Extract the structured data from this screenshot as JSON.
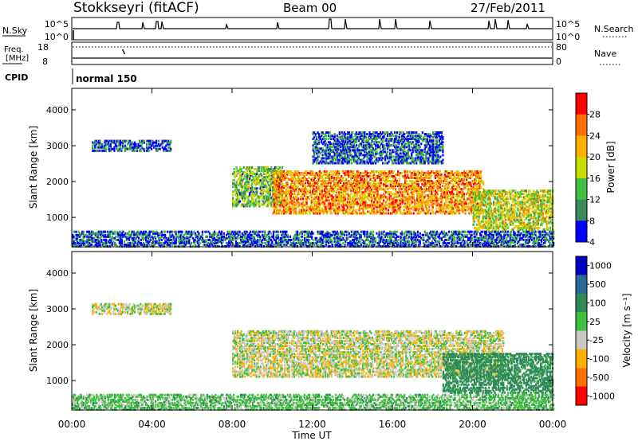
{
  "header": {
    "station": "Stokkseyri (fitACF)",
    "beam": "Beam 00",
    "date": "27/Feb/2011"
  },
  "top_panels": {
    "nsky_label": "N.Sky",
    "nsky_ticks": [
      "10^5",
      "10^0"
    ],
    "nsearch_label": "N.Search",
    "nsearch_ticks": [
      "10^5",
      "10^0"
    ],
    "freq_label_1": "Freq.",
    "freq_label_2": "[MHz]",
    "freq_ticks": [
      "18",
      "8"
    ],
    "nave_label": "Nave",
    "nave_ticks": [
      "80",
      "0"
    ],
    "cpid_label": "CPID",
    "cpid_value": "normal 150"
  },
  "chart_data": [
    {
      "type": "heatmap",
      "name": "power",
      "ylabel": "Slant Range [km]",
      "yticks": [
        "4000",
        "3000",
        "2000",
        "1000"
      ],
      "ylim": [
        180,
        4600
      ],
      "xlim": [
        0,
        24
      ],
      "colorbar_label": "Power [dB]",
      "colorbar_ticks": [
        "28",
        "24",
        "20",
        "16",
        "12",
        "8",
        "4"
      ],
      "colorbar_colors": [
        "#ff0000",
        "#ff7000",
        "#ffb000",
        "#c8dc00",
        "#40c040",
        "#3a8a5a",
        "#0000ff"
      ],
      "echo_regions": [
        {
          "t_start": 1.0,
          "t_end": 4.9,
          "r_min": 2850,
          "r_max": 3150,
          "power_db": 6
        },
        {
          "t_start": 8.0,
          "t_end": 10.5,
          "r_min": 1300,
          "r_max": 2400,
          "power_db": 12
        },
        {
          "t_start": 10.0,
          "t_end": 20.5,
          "r_min": 1100,
          "r_max": 2300,
          "power_db": 22
        },
        {
          "t_start": 12.0,
          "t_end": 18.5,
          "r_min": 2500,
          "r_max": 3400,
          "power_db": 6
        },
        {
          "t_start": 20.0,
          "t_end": 24.0,
          "r_min": 650,
          "r_max": 1750,
          "power_db": 16
        },
        {
          "t_start": 0.0,
          "t_end": 24.0,
          "r_min": 180,
          "r_max": 600,
          "power_db": 6
        }
      ]
    },
    {
      "type": "heatmap",
      "name": "velocity",
      "ylabel": "Slant Range [km]",
      "yticks": [
        "4000",
        "3000",
        "2000",
        "1000"
      ],
      "ylim": [
        180,
        4600
      ],
      "xlim": [
        0,
        24
      ],
      "xticks": [
        "00:00",
        "04:00",
        "08:00",
        "12:00",
        "16:00",
        "20:00",
        "00:00"
      ],
      "xlabel": "Time UT",
      "colorbar_label": "Velocity [m s⁻¹]",
      "colorbar_ticks": [
        "1000",
        "500",
        "100",
        "25",
        "-25",
        "-100",
        "-500",
        "-1000"
      ],
      "colorbar_colors": [
        "#0000c0",
        "#2a6a9a",
        "#2e8b57",
        "#40c040",
        "#c8c8c0",
        "#ffb000",
        "#ff7000",
        "#ff0000"
      ],
      "echo_regions": [
        {
          "t_start": 1.0,
          "t_end": 4.9,
          "r_min": 2850,
          "r_max": 3150,
          "velocity": 0
        },
        {
          "t_start": 8.0,
          "t_end": 21.5,
          "r_min": 1100,
          "r_max": 2400,
          "velocity": 0
        },
        {
          "t_start": 18.5,
          "t_end": 24.0,
          "r_min": 650,
          "r_max": 1750,
          "velocity": 150
        },
        {
          "t_start": 0.0,
          "t_end": 24.0,
          "r_min": 180,
          "r_max": 600,
          "velocity": 60
        }
      ]
    }
  ]
}
